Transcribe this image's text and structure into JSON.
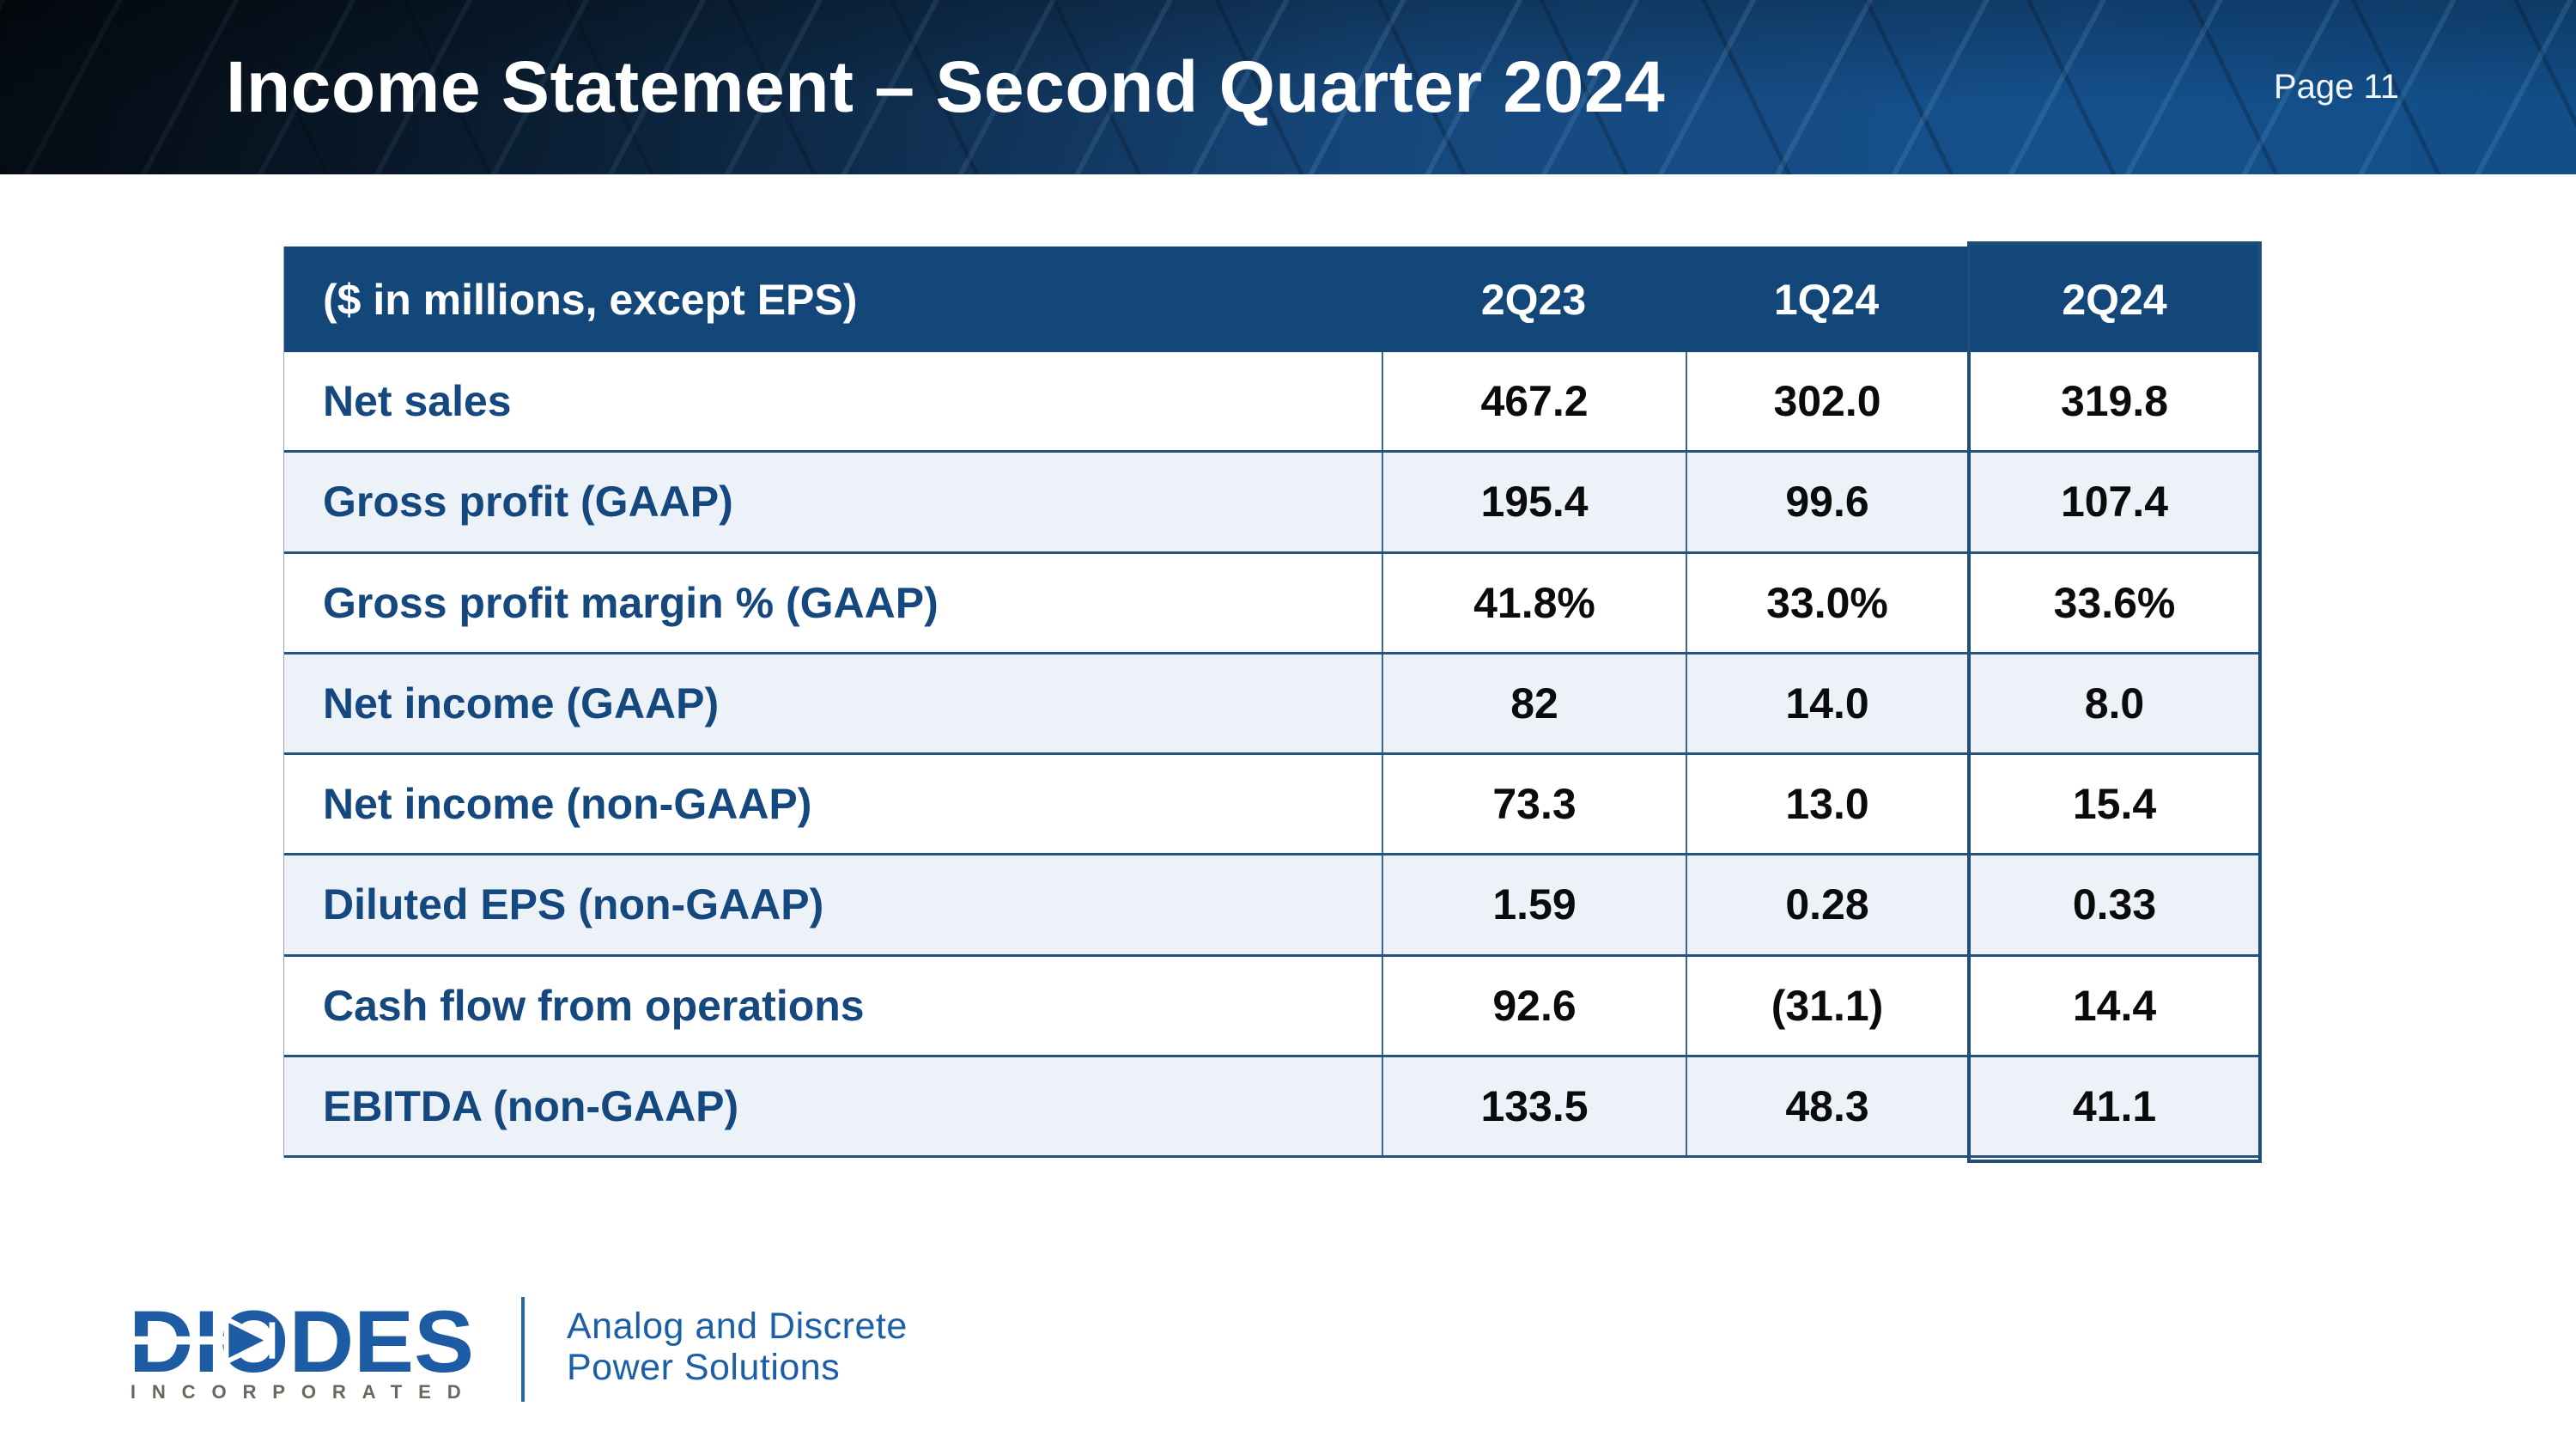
{
  "header": {
    "title": "Income Statement – Second Quarter 2024",
    "page_label": "Page 11"
  },
  "table": {
    "unit_label": "($ in millions, except EPS)",
    "columns": [
      "2Q23",
      "1Q24",
      "2Q24"
    ],
    "highlighted_column": "2Q24",
    "rows": [
      {
        "label": "Net sales",
        "values": [
          "467.2",
          "302.0",
          "319.8"
        ]
      },
      {
        "label": "Gross profit (GAAP)",
        "values": [
          "195.4",
          "99.6",
          "107.4"
        ]
      },
      {
        "label": "Gross profit margin % (GAAP)",
        "values": [
          "41.8%",
          "33.0%",
          "33.6%"
        ]
      },
      {
        "label": "Net income (GAAP)",
        "values": [
          "82",
          "14.0",
          "8.0"
        ]
      },
      {
        "label": "Net income (non-GAAP)",
        "values": [
          "73.3",
          "13.0",
          "15.4"
        ]
      },
      {
        "label": "Diluted EPS (non-GAAP)",
        "values": [
          "1.59",
          "0.28",
          "0.33"
        ]
      },
      {
        "label": "Cash flow from operations",
        "values": [
          "92.6",
          "(31.1)",
          "14.4"
        ]
      },
      {
        "label": "EBITDA (non-GAAP)",
        "values": [
          "133.5",
          "48.3",
          "41.1"
        ]
      }
    ]
  },
  "footer": {
    "logo_text": "DIODES",
    "logo_subtext": "INCORPORATED",
    "tagline_line1": "Analog and Discrete",
    "tagline_line2": "Power Solutions"
  },
  "colors": {
    "banner_blue": "#124E88",
    "header_row_blue": "#134779",
    "row_stripe": "#EDF2F8",
    "row_label_blue": "#14487E",
    "grid_vertical": "#34689B",
    "grid_horizontal": "#26547C",
    "highlight_border": "#1F4E79",
    "logo_blue": "#1D5CA5",
    "incorporated_gray": "#6B675C",
    "tagline_blue": "#1A5FA8"
  }
}
